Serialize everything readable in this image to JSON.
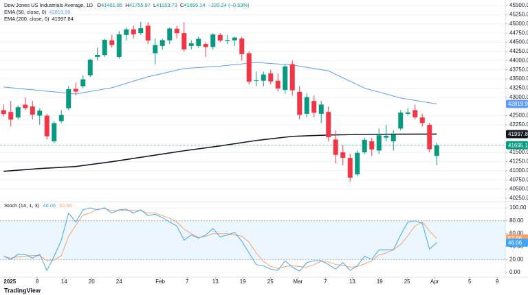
{
  "chart_data": [
    {
      "type": "candlestick",
      "title": "Dow Jones US Industrials Average, 1D",
      "ohlc_labels": [
        "O",
        "H",
        "L",
        "C"
      ],
      "change": {
        "value": -220.24,
        "label": "−220.24 (−0.53%)"
      },
      "open": [
        42650,
        42600,
        42450,
        42800,
        42750,
        42500,
        42500,
        41800,
        42350,
        42700,
        43230,
        43300,
        43600,
        44100,
        44150,
        44550,
        44100,
        44700,
        44850,
        44750,
        44950,
        44200,
        44400,
        44550,
        44870,
        44750,
        44400,
        44400,
        44450,
        44370,
        44700,
        44530,
        44550,
        44600,
        44200,
        43450,
        43450,
        43650,
        43450,
        43200,
        43900,
        43150,
        42550,
        42900,
        42550,
        42600,
        41850,
        41500,
        41350,
        40900,
        41500,
        41800,
        41550,
        41900,
        41800,
        42150,
        42550,
        42650,
        42450,
        42250,
        41401.85
      ],
      "high": [
        42800,
        42900,
        42780,
        43000,
        42900,
        42700,
        42550,
        42350,
        42650,
        43300,
        43400,
        43600,
        44050,
        44350,
        44600,
        44700,
        44800,
        44900,
        44950,
        45050,
        45050,
        44600,
        44600,
        44900,
        44950,
        45050,
        44550,
        44650,
        44500,
        44750,
        44750,
        44700,
        44650,
        44650,
        44250,
        43700,
        43700,
        43750,
        43650,
        43900,
        44000,
        43300,
        43100,
        43050,
        42900,
        42750,
        42100,
        41700,
        41450,
        41550,
        41900,
        41900,
        42150,
        42250,
        42100,
        42650,
        42700,
        42800,
        42550,
        42300,
        41755.97
      ],
      "low": [
        42480,
        42200,
        42400,
        42650,
        42400,
        42250,
        41850,
        41750,
        42300,
        42650,
        43050,
        43250,
        43550,
        44000,
        44100,
        44350,
        44050,
        44550,
        44600,
        44700,
        44450,
        43900,
        44300,
        44450,
        44600,
        44250,
        44300,
        44350,
        44100,
        44300,
        44500,
        44450,
        44400,
        44000,
        43350,
        43300,
        43300,
        43350,
        43150,
        43100,
        43050,
        42400,
        42450,
        42450,
        42300,
        41800,
        41200,
        41150,
        40700,
        40850,
        41450,
        41400,
        41450,
        41800,
        41550,
        42100,
        42500,
        42400,
        42200,
        41500,
        41153.73
      ],
      "close": [
        42544,
        42392,
        42732,
        42706,
        42528,
        42635,
        41938,
        42297,
        42518,
        43221,
        43153,
        43488,
        44025,
        44156,
        44565,
        44424,
        44713,
        44850,
        44714,
        44882,
        44545,
        44421,
        44556,
        44873,
        44747,
        44303,
        44470,
        44593,
        44368,
        44711,
        44546,
        44556,
        44628,
        44177,
        43428,
        43461,
        43621,
        43433,
        43240,
        43841,
        43191,
        42521,
        43006,
        42579,
        42802,
        41912,
        41433,
        41350,
        40813,
        41488,
        41841,
        41581,
        41965,
        41953,
        41985,
        42583,
        42587,
        42455,
        42300,
        41584,
        41695.14
      ],
      "up_color": "#089981",
      "down_color": "#f23645",
      "series": [
        {
          "name": "EMA (50, close, 0)",
          "color": "#5b9cf6",
          "x": [
            0,
            5,
            10,
            15,
            20,
            25,
            30,
            35,
            40,
            45,
            50,
            55,
            60
          ],
          "values": [
            43280,
            43186,
            43093,
            43260,
            43560,
            43783,
            43850,
            43950,
            43880,
            43720,
            43250,
            42980,
            42819.99
          ]
        },
        {
          "name": "EMA (200, close, 0)",
          "color": "#131722",
          "x": [
            0,
            5,
            10,
            15,
            20,
            25,
            30,
            35,
            40,
            45,
            50,
            55,
            60
          ],
          "values": [
            40984,
            41059,
            41115,
            41246,
            41395,
            41544,
            41675,
            41824,
            41936,
            41973,
            41990,
            41995,
            41997.84
          ]
        }
      ],
      "xlim": [
        -0.5,
        69.5
      ],
      "ylim": [
        40175,
        45650
      ],
      "yticks": [
        {
          "value": 45500,
          "label": "45500.00"
        },
        {
          "value": 45250,
          "label": "45250.00"
        },
        {
          "value": 45000,
          "label": "45000.00"
        },
        {
          "value": 44750,
          "label": "44750.00"
        },
        {
          "value": 44500,
          "label": "44500.00"
        },
        {
          "value": 44250,
          "label": "44250.00"
        },
        {
          "value": 44000,
          "label": "44000.00"
        },
        {
          "value": 43750,
          "label": "43750.00"
        },
        {
          "value": 43500,
          "label": "43500.00"
        },
        {
          "value": 43250,
          "label": "43250.00"
        },
        {
          "value": 43000,
          "label": "43000.00"
        },
        {
          "value": 42500,
          "label": "42500.00"
        },
        {
          "value": 42250,
          "label": "42250.00"
        },
        {
          "value": 41500,
          "label": "41500.00"
        },
        {
          "value": 41250,
          "label": "41250.00"
        },
        {
          "value": 41000,
          "label": "41000.00"
        },
        {
          "value": 40750,
          "label": "40750.00"
        },
        {
          "value": 40500,
          "label": "40500.00"
        },
        {
          "value": 40250,
          "label": "40250.00"
        }
      ]
    },
    {
      "type": "line",
      "title": "Stoch (14, 1, 3)",
      "series": [
        {
          "color": "#42a5f5",
          "values": [
            25,
            20,
            28,
            28,
            22,
            28,
            3,
            25,
            50,
            92,
            78,
            97,
            100,
            97,
            100,
            92,
            97,
            98,
            92,
            97,
            88,
            90,
            85,
            78,
            72,
            50,
            58,
            53,
            58,
            68,
            55,
            58,
            62,
            48,
            30,
            12,
            10,
            5,
            3,
            18,
            8,
            2,
            15,
            18,
            18,
            12,
            5,
            15,
            3,
            10,
            25,
            20,
            35,
            35,
            35,
            58,
            78,
            80,
            76,
            36,
            46.06
          ]
        },
        {
          "color": "#f7a26b",
          "values": [
            25,
            22,
            24,
            25,
            26,
            26,
            18,
            19,
            26,
            56,
            73,
            89,
            92,
            98,
            99,
            96,
            96,
            96,
            96,
            96,
            92,
            92,
            88,
            84,
            78,
            67,
            60,
            54,
            56,
            60,
            60,
            60,
            58,
            56,
            47,
            30,
            17,
            9,
            6,
            9,
            10,
            9,
            8,
            12,
            17,
            16,
            12,
            11,
            8,
            9,
            13,
            18,
            27,
            30,
            35,
            43,
            57,
            72,
            78,
            64,
            52.66
          ]
        }
      ],
      "band": [
        20,
        80
      ],
      "band_color": "#2196f3",
      "xlim": [
        -0.5,
        69.5
      ],
      "ylim": [
        -7.5,
        107.5
      ],
      "yticks": [
        {
          "value": 100,
          "label": "100.00"
        },
        {
          "value": 80,
          "label": "80.00"
        },
        {
          "value": 60,
          "label": "60.00"
        },
        {
          "value": 40,
          "label": "40.00"
        },
        {
          "value": 20,
          "label": "20.00"
        },
        {
          "value": 0,
          "label": "0.00"
        }
      ],
      "xticks": [
        {
          "value": 0.86,
          "label": "2025"
        },
        {
          "value": 4.67,
          "label": "8"
        },
        {
          "value": 8.38,
          "label": "14"
        },
        {
          "value": 12.19,
          "label": "20"
        },
        {
          "value": 16,
          "label": "24"
        },
        {
          "value": 21.7,
          "label": "Feb"
        },
        {
          "value": 25.43,
          "label": "7"
        },
        {
          "value": 29.33,
          "label": "13"
        },
        {
          "value": 33.14,
          "label": "19"
        },
        {
          "value": 36.95,
          "label": "25"
        },
        {
          "value": 40.76,
          "label": "Mar"
        },
        {
          "value": 44.57,
          "label": "7"
        },
        {
          "value": 48.29,
          "label": "13"
        },
        {
          "value": 52.1,
          "label": "19"
        },
        {
          "value": 55.9,
          "label": "25"
        },
        {
          "value": 59.7,
          "label": "Apr"
        },
        {
          "value": 64.57,
          "label": "5"
        },
        {
          "value": 68.38,
          "label": "9"
        }
      ]
    }
  ],
  "watermark": "TradingView"
}
